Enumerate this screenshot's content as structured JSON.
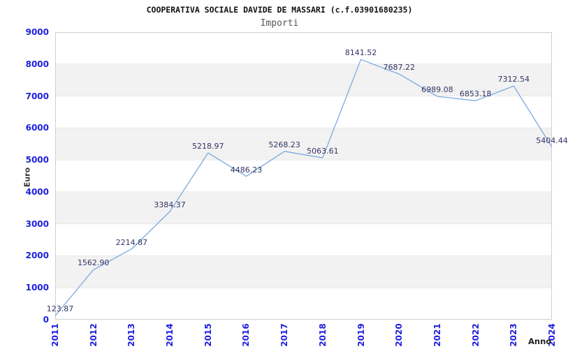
{
  "chart_data": {
    "type": "line",
    "title": "COOPERATIVA SOCIALE DAVIDE DE MASSARI (c.f.03901680235)",
    "subtitle": "Importi",
    "xlabel": "Anno",
    "ylabel": "Euro",
    "x": [
      "2011",
      "2012",
      "2013",
      "2014",
      "2015",
      "2016",
      "2017",
      "2018",
      "2019",
      "2020",
      "2021",
      "2022",
      "2023",
      "2024"
    ],
    "values": [
      123.87,
      1562.9,
      2214.87,
      3384.37,
      5218.97,
      4486.23,
      5268.23,
      5063.61,
      8141.52,
      7687.22,
      6989.08,
      6853.18,
      7312.54,
      5404.44
    ],
    "point_labels": [
      "123.87",
      "1562.90",
      "2214.87",
      "3384.37",
      "5218.97",
      "4486.23",
      "5268.23",
      "5063.61",
      "8141.52",
      "7687.22",
      "6989.08",
      "6853.18",
      "7312.54",
      "5404.44"
    ],
    "ylim": [
      0,
      9000
    ],
    "y_tick_step": 1000,
    "y_tick_labels": [
      "0",
      "1000",
      "2000",
      "3000",
      "4000",
      "5000",
      "6000",
      "7000",
      "8000",
      "9000"
    ],
    "grid": "horizontal-alternating-bands",
    "legend_position": "none",
    "colors": {
      "line": "#7da9e0",
      "tick_label": "#2020dd",
      "data_label": "#333366",
      "band_fill": "#f2f2f2",
      "grid_line": "#e9e9e9",
      "plot_border": "#d0d0d0",
      "title": "#111111",
      "subtitle": "#555555",
      "axis_title": "#333333",
      "background": "#ffffff"
    }
  }
}
